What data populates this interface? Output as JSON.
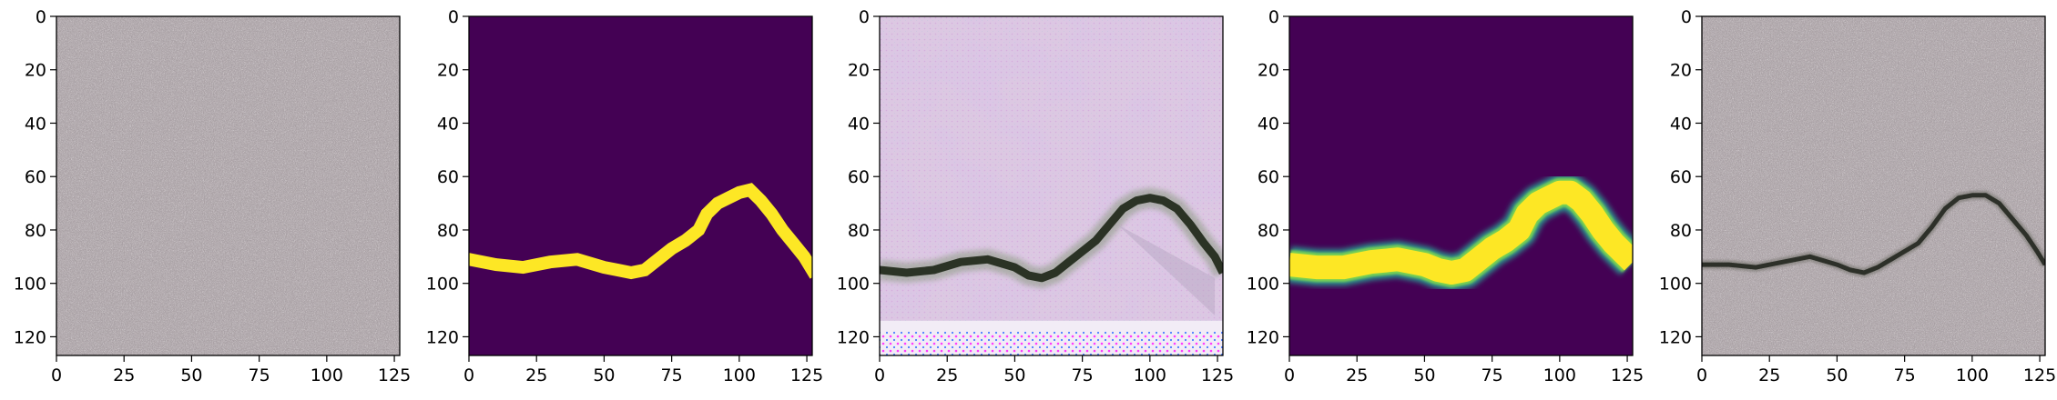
{
  "chart_data": [
    {
      "type": "heatmap",
      "title": "",
      "image": "concrete-texture-no-crack",
      "xlabel": "",
      "ylabel": "",
      "xlim": [
        0,
        127
      ],
      "ylim": [
        127,
        0
      ],
      "xticks": [
        0,
        25,
        50,
        75,
        100,
        125
      ],
      "yticks": [
        0,
        20,
        40,
        60,
        80,
        100,
        120
      ],
      "xtick_labels": [
        "0",
        "25",
        "50",
        "75",
        "100",
        "125"
      ],
      "ytick_labels": [
        "0",
        "20",
        "40",
        "60",
        "80",
        "100",
        "120"
      ],
      "grid": false
    },
    {
      "type": "heatmap",
      "title": "",
      "image": "binary-crack-mask",
      "colormap": "viridis",
      "background_color": "#440154",
      "foreground_color": "#fde725",
      "crack_path_x": [
        0,
        10,
        20,
        30,
        40,
        50,
        55,
        60,
        65,
        70,
        75,
        80,
        85,
        88,
        92,
        96,
        100,
        104,
        108,
        112,
        116,
        120,
        124,
        127
      ],
      "crack_path_y": [
        91,
        93,
        94,
        92,
        91,
        94,
        95,
        96,
        95,
        91,
        87,
        84,
        80,
        74,
        70,
        68,
        66,
        65,
        69,
        74,
        80,
        85,
        90,
        95
      ],
      "xlim": [
        0,
        127
      ],
      "ylim": [
        127,
        0
      ],
      "xticks": [
        0,
        25,
        50,
        75,
        100,
        125
      ],
      "yticks": [
        0,
        20,
        40,
        60,
        80,
        100,
        120
      ],
      "xtick_labels": [
        "0",
        "25",
        "50",
        "75",
        "100",
        "125"
      ],
      "ytick_labels": [
        "0",
        "20",
        "40",
        "60",
        "80",
        "100",
        "120"
      ],
      "grid": false
    },
    {
      "type": "heatmap",
      "title": "",
      "image": "generated-crack-texture-with-artifacts",
      "crack_path_x": [
        0,
        10,
        20,
        30,
        40,
        50,
        55,
        60,
        65,
        70,
        75,
        80,
        85,
        90,
        95,
        100,
        105,
        110,
        115,
        120,
        124,
        127
      ],
      "crack_path_y": [
        95,
        96,
        95,
        92,
        91,
        94,
        97,
        98,
        96,
        92,
        88,
        84,
        78,
        72,
        69,
        68,
        69,
        72,
        78,
        85,
        90,
        96
      ],
      "xlim": [
        0,
        127
      ],
      "ylim": [
        127,
        0
      ],
      "xticks": [
        0,
        25,
        50,
        75,
        100,
        125
      ],
      "yticks": [
        0,
        20,
        40,
        60,
        80,
        100,
        120
      ],
      "xtick_labels": [
        "0",
        "25",
        "50",
        "75",
        "100",
        "125"
      ],
      "ytick_labels": [
        "0",
        "20",
        "40",
        "60",
        "80",
        "100",
        "120"
      ],
      "grid": false
    },
    {
      "type": "heatmap",
      "title": "",
      "image": "soft-crack-mask",
      "colormap": "viridis",
      "background_color": "#440154",
      "foreground_color": "#fde725",
      "crack_path_x": [
        0,
        10,
        20,
        30,
        40,
        50,
        55,
        60,
        65,
        70,
        75,
        80,
        85,
        88,
        92,
        96,
        100,
        104,
        108,
        112,
        116,
        120,
        124,
        127
      ],
      "crack_path_y": [
        93,
        94,
        94,
        92,
        91,
        93,
        95,
        96,
        95,
        91,
        87,
        84,
        80,
        74,
        70,
        68,
        66,
        66,
        69,
        74,
        80,
        85,
        89,
        92
      ],
      "xlim": [
        0,
        127
      ],
      "ylim": [
        127,
        0
      ],
      "xticks": [
        0,
        25,
        50,
        75,
        100,
        125
      ],
      "yticks": [
        0,
        20,
        40,
        60,
        80,
        100,
        120
      ],
      "xtick_labels": [
        "0",
        "25",
        "50",
        "75",
        "100",
        "125"
      ],
      "ytick_labels": [
        "0",
        "20",
        "40",
        "60",
        "80",
        "100",
        "120"
      ],
      "grid": false
    },
    {
      "type": "heatmap",
      "title": "",
      "image": "concrete-texture-with-crack",
      "crack_path_x": [
        0,
        10,
        20,
        30,
        40,
        50,
        55,
        60,
        65,
        70,
        75,
        80,
        85,
        90,
        95,
        100,
        105,
        110,
        115,
        120,
        124,
        127
      ],
      "crack_path_y": [
        93,
        93,
        94,
        92,
        90,
        93,
        95,
        96,
        94,
        91,
        88,
        85,
        79,
        72,
        68,
        67,
        67,
        70,
        76,
        82,
        88,
        93
      ],
      "xlim": [
        0,
        127
      ],
      "ylim": [
        127,
        0
      ],
      "xticks": [
        0,
        25,
        50,
        75,
        100,
        125
      ],
      "yticks": [
        0,
        20,
        40,
        60,
        80,
        100,
        120
      ],
      "xtick_labels": [
        "0",
        "25",
        "50",
        "75",
        "100",
        "125"
      ],
      "ytick_labels": [
        "0",
        "20",
        "40",
        "60",
        "80",
        "100",
        "120"
      ],
      "grid": false
    }
  ]
}
